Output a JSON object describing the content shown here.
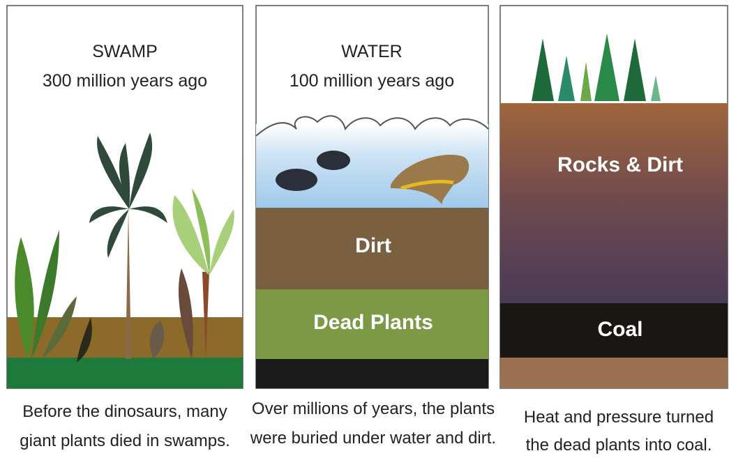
{
  "panels": [
    {
      "title": "SWAMP",
      "subtitle": "300 million years ago",
      "caption": [
        "Before the dinosaurs, many",
        "giant plants died in swamps."
      ]
    },
    {
      "title": "WATER",
      "subtitle": "100 million years ago",
      "layers": [
        "Dirt",
        "Dead Plants"
      ],
      "caption": [
        "Over millions of years, the plants",
        "were buried under water and dirt."
      ]
    },
    {
      "layers": [
        "Rocks & Dirt",
        "Coal"
      ],
      "caption": [
        "Heat and pressure turned",
        "the dead plants into coal."
      ]
    }
  ]
}
